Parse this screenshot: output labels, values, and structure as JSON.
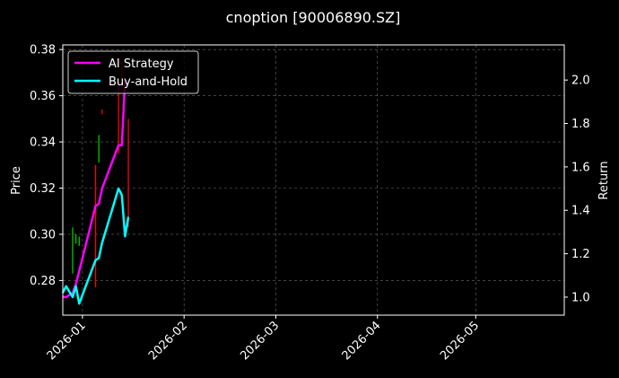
{
  "chart_data": {
    "type": "line",
    "title": "cnoption [90006890.SZ]",
    "xlabel": "",
    "ylabel": "Price",
    "ylabel_right": "Return",
    "x_range": [
      "2025-12-26",
      "2026-05-28"
    ],
    "ylim": [
      0.265,
      0.382
    ],
    "ylim_right": [
      0.917,
      2.162
    ],
    "grid": true,
    "legend_position": "upper-left",
    "x_ticks": [
      "2026-01",
      "2026-02",
      "2026-03",
      "2026-04",
      "2026-05"
    ],
    "y_ticks": [
      "0.28",
      "0.30",
      "0.32",
      "0.34",
      "0.36",
      "0.38"
    ],
    "y_ticks_right": [
      "1.0",
      "1.2",
      "1.4",
      "1.6",
      "1.8",
      "2.0"
    ],
    "colors": {
      "strategy": "#ff00ff",
      "buyhold": "#00ffff",
      "up": "#00c800",
      "down": "#ff0000",
      "grid": "#6b6b6b"
    },
    "candles": [
      {
        "date": "2025-12-29",
        "low": 0.283,
        "high": 0.303,
        "dir": "up"
      },
      {
        "date": "2025-12-30",
        "low": 0.296,
        "high": 0.3,
        "dir": "up"
      },
      {
        "date": "2025-12-31",
        "low": 0.295,
        "high": 0.299,
        "dir": "up"
      },
      {
        "date": "2026-01-05",
        "low": 0.277,
        "high": 0.33,
        "dir": "down"
      },
      {
        "date": "2026-01-06",
        "low": 0.331,
        "high": 0.343,
        "dir": "up"
      },
      {
        "date": "2026-01-07",
        "low": 0.352,
        "high": 0.354,
        "dir": "down"
      },
      {
        "date": "2026-01-12",
        "low": 0.335,
        "high": 0.366,
        "dir": "down"
      },
      {
        "date": "2026-01-13",
        "low": 0.362,
        "high": 0.375,
        "dir": "down"
      },
      {
        "date": "2026-01-15",
        "low": 0.303,
        "high": 0.35,
        "dir": "down"
      }
    ],
    "series": [
      {
        "name": "AI Strategy",
        "x": [
          "2025-12-26",
          "2025-12-27",
          "2025-12-29",
          "2025-12-30",
          "2025-12-31",
          "2026-01-05",
          "2026-01-06",
          "2026-01-07",
          "2026-01-12",
          "2026-01-13",
          "2026-01-14"
        ],
        "values": [
          1.0,
          1.0,
          1.02,
          1.06,
          1.12,
          1.42,
          1.43,
          1.5,
          1.7,
          1.7,
          2.0
        ]
      },
      {
        "name": "Buy-and-Hold",
        "x": [
          "2025-12-26",
          "2025-12-27",
          "2025-12-29",
          "2025-12-30",
          "2025-12-31",
          "2026-01-05",
          "2026-01-06",
          "2026-01-07",
          "2026-01-12",
          "2026-01-13",
          "2026-01-14",
          "2026-01-15"
        ],
        "values": [
          1.02,
          1.05,
          1.0,
          1.05,
          0.97,
          1.17,
          1.18,
          1.25,
          1.5,
          1.47,
          1.28,
          1.37
        ]
      }
    ]
  }
}
